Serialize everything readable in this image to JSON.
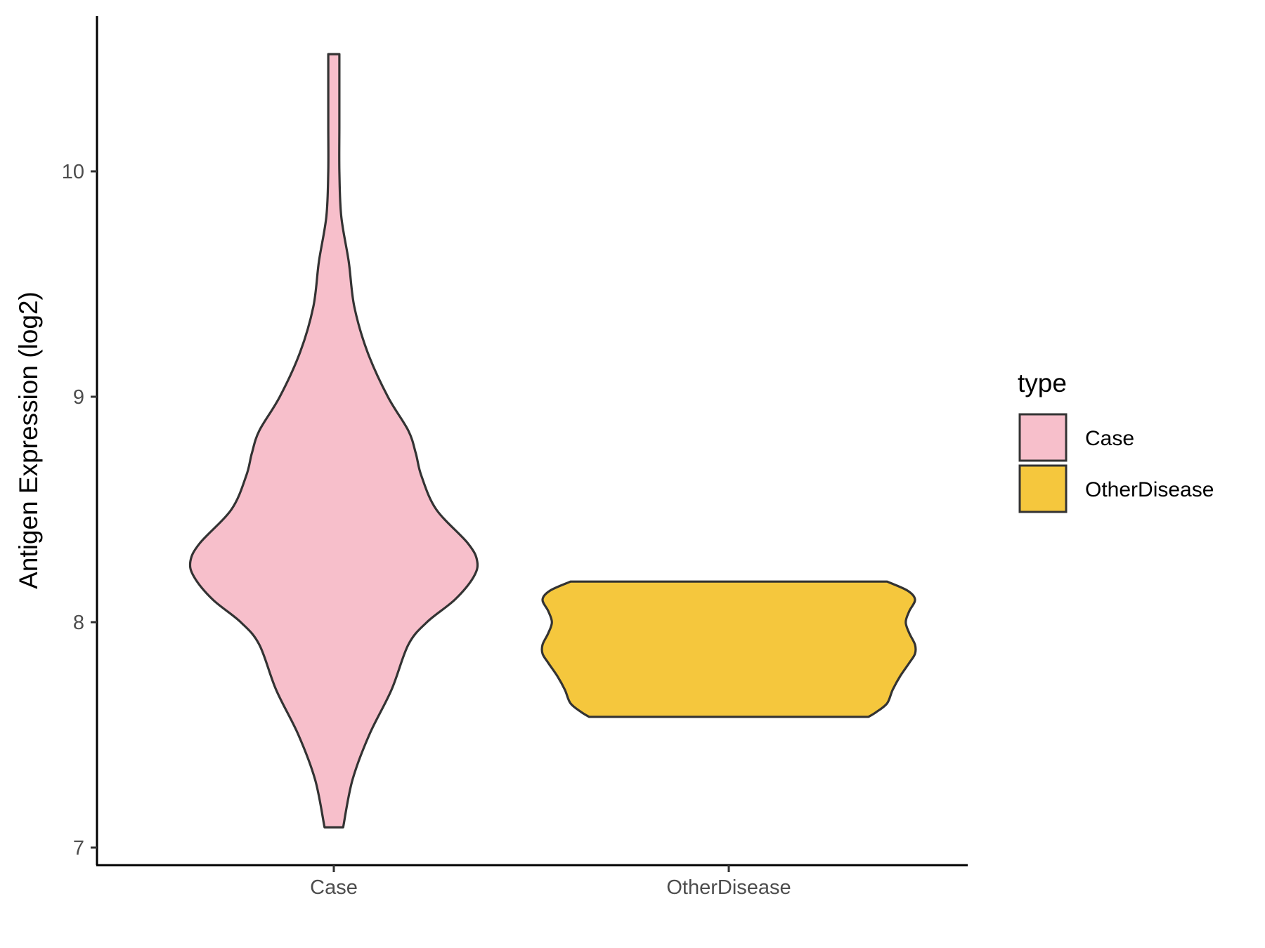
{
  "chart_data": {
    "type": "violin",
    "categories": [
      "Case",
      "OtherDisease"
    ],
    "ylabel": "Antigen Expression (log2)",
    "xlabel": "",
    "ylim": [
      6.92,
      10.7
    ],
    "yticks": [
      7,
      8,
      9,
      10
    ],
    "y_tick_labels": [
      "7",
      "8",
      "9",
      "10"
    ],
    "legend": {
      "title": "type",
      "position": "right",
      "entries": [
        "Case",
        "OtherDisease"
      ]
    },
    "grid": false,
    "colors": {
      "Case": "#F7BFCB",
      "OtherDisease": "#F5C73D",
      "outline": "#333333"
    },
    "series": [
      {
        "name": "Case",
        "min": 7.09,
        "max": 10.52,
        "density": [
          [
            7.09,
            0.05
          ],
          [
            7.3,
            0.1
          ],
          [
            7.5,
            0.19
          ],
          [
            7.7,
            0.31
          ],
          [
            7.9,
            0.4
          ],
          [
            8.0,
            0.5
          ],
          [
            8.1,
            0.65
          ],
          [
            8.2,
            0.75
          ],
          [
            8.27,
            0.77
          ],
          [
            8.35,
            0.72
          ],
          [
            8.5,
            0.55
          ],
          [
            8.65,
            0.47
          ],
          [
            8.75,
            0.44
          ],
          [
            8.85,
            0.4
          ],
          [
            9.0,
            0.29
          ],
          [
            9.2,
            0.18
          ],
          [
            9.4,
            0.11
          ],
          [
            9.6,
            0.08
          ],
          [
            9.8,
            0.04
          ],
          [
            10.0,
            0.03
          ],
          [
            10.2,
            0.03
          ],
          [
            10.4,
            0.03
          ],
          [
            10.52,
            0.03
          ]
        ]
      },
      {
        "name": "OtherDisease",
        "min": 7.58,
        "max": 8.18,
        "density": [
          [
            7.58,
            0.75
          ],
          [
            7.6,
            0.79
          ],
          [
            7.64,
            0.85
          ],
          [
            7.7,
            0.88
          ],
          [
            7.76,
            0.92
          ],
          [
            7.82,
            0.97
          ],
          [
            7.86,
            1.0
          ],
          [
            7.9,
            1.0
          ],
          [
            7.95,
            0.97
          ],
          [
            8.0,
            0.95
          ],
          [
            8.05,
            0.97
          ],
          [
            8.1,
            1.0
          ],
          [
            8.14,
            0.96
          ],
          [
            8.18,
            0.85
          ]
        ]
      }
    ]
  }
}
